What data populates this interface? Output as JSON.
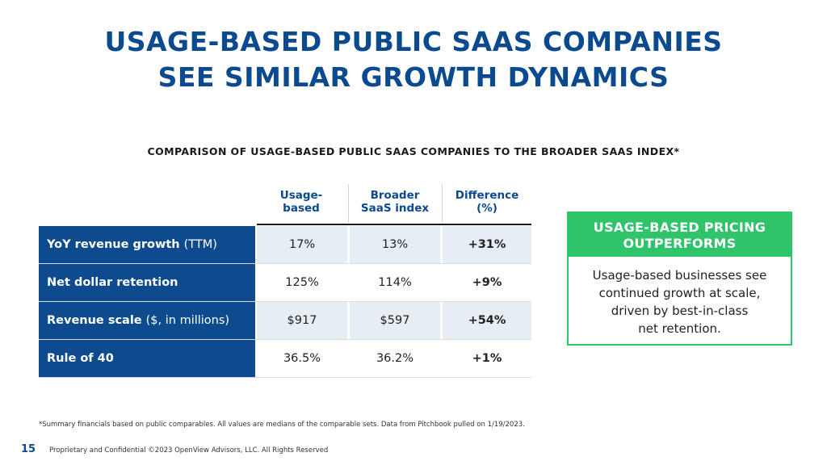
{
  "title": {
    "line1": "USAGE-BASED PUBLIC SAAS COMPANIES",
    "line2": "SEE SIMILAR GROWTH DYNAMICS"
  },
  "subtitle": "COMPARISON OF USAGE-BASED PUBLIC SAAS COMPANIES TO THE BROADER SAAS INDEX*",
  "table": {
    "headers": [
      {
        "line1": "Usage-",
        "line2": "based"
      },
      {
        "line1": "Broader",
        "line2": "SaaS index"
      },
      {
        "line1": "Difference",
        "line2": "(%)"
      }
    ],
    "rows": [
      {
        "label_bold": "YoY revenue growth",
        "label_light": "(TTM)",
        "usage": "17%",
        "broader": "13%",
        "diff": "+31%"
      },
      {
        "label_bold": "Net dollar retention",
        "label_light": "",
        "usage": "125%",
        "broader": "114%",
        "diff": "+9%"
      },
      {
        "label_bold": "Revenue scale",
        "label_light": "($, in millions)",
        "usage": "$917",
        "broader": "$597",
        "diff": "+54%"
      },
      {
        "label_bold": "Rule of 40",
        "label_light": "",
        "usage": "36.5%",
        "broader": "36.2%",
        "diff": "+1%"
      }
    ]
  },
  "callout": {
    "heading_line1": "USAGE-BASED PRICING",
    "heading_line2": "OUTPERFORMS",
    "body_lines": [
      "Usage-based businesses see",
      "continued growth at scale,",
      "driven by best-in-class",
      "net retention."
    ]
  },
  "footnote": "*Summary financials based on public comparables. All values are medians of the comparable sets. Data from Pitchbook pulled on 1/19/2023.",
  "footer": {
    "page_number": "15",
    "confidential": "Proprietary and Confidential ©2023 OpenView Advisors, LLC. All Rights Reserved"
  },
  "colors": {
    "brand_blue": "#0b4a8f",
    "accent_green": "#2fc36a",
    "cell_shade": "#e6eef4"
  }
}
